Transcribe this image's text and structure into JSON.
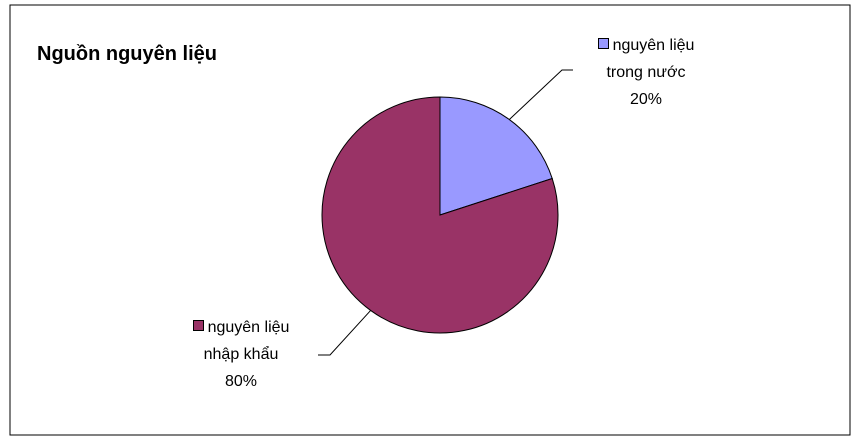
{
  "chart_data": {
    "type": "pie",
    "title": "Nguồn nguyên liệu",
    "categories": [
      "nguyên liệu trong nước",
      "nguyên liệu nhập khẩu"
    ],
    "values": [
      20,
      80
    ],
    "value_labels": [
      "20%",
      "80%"
    ],
    "colors": [
      "#9999ff",
      "#993366"
    ]
  }
}
